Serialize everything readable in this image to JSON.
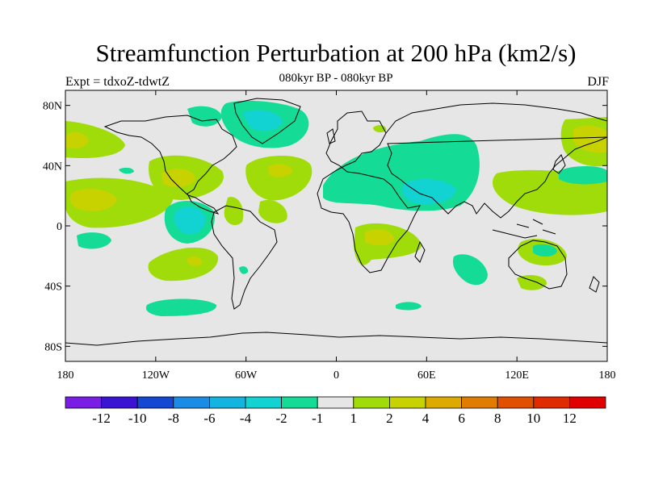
{
  "title": "Streamfunction Perturbation at 200 hPa (km2/s)",
  "left_label": "Expt = tdxoZ-tdwtZ",
  "center_label": "080kyr BP - 080kyr BP",
  "right_label": "DJF",
  "map": {
    "projection": "cylindrical-equidistant",
    "lon_range": [
      -180,
      180
    ],
    "lat_range": [
      -90,
      90
    ],
    "background_color": "#e6e6e6",
    "coastline_color": "#000000",
    "y_ticks": [
      {
        "lat": 80,
        "label": "80N"
      },
      {
        "lat": 40,
        "label": "40N"
      },
      {
        "lat": 0,
        "label": "0"
      },
      {
        "lat": -40,
        "label": "40S"
      },
      {
        "lat": -80,
        "label": "80S"
      }
    ],
    "x_ticks": [
      {
        "lon": -180,
        "label": "180"
      },
      {
        "lon": -120,
        "label": "120W"
      },
      {
        "lon": -60,
        "label": "60W"
      },
      {
        "lon": 0,
        "label": "0"
      },
      {
        "lon": 60,
        "label": "60E"
      },
      {
        "lon": 120,
        "label": "120E"
      },
      {
        "lon": 180,
        "label": "180"
      }
    ]
  },
  "colorbar": {
    "colors": [
      "#7a1ee6",
      "#3a14d2",
      "#1448d2",
      "#1a8ce6",
      "#14b4e0",
      "#12d2d2",
      "#14dc96",
      "#e6e6e6",
      "#a0dc0a",
      "#c8d200",
      "#dcaa00",
      "#e07c00",
      "#e05000",
      "#e02a00",
      "#e00000"
    ],
    "labels": [
      "-12",
      "-10",
      "-8",
      "-6",
      "-4",
      "-2",
      "-1",
      "1",
      "2",
      "4",
      "6",
      "8",
      "10",
      "12"
    ]
  }
}
